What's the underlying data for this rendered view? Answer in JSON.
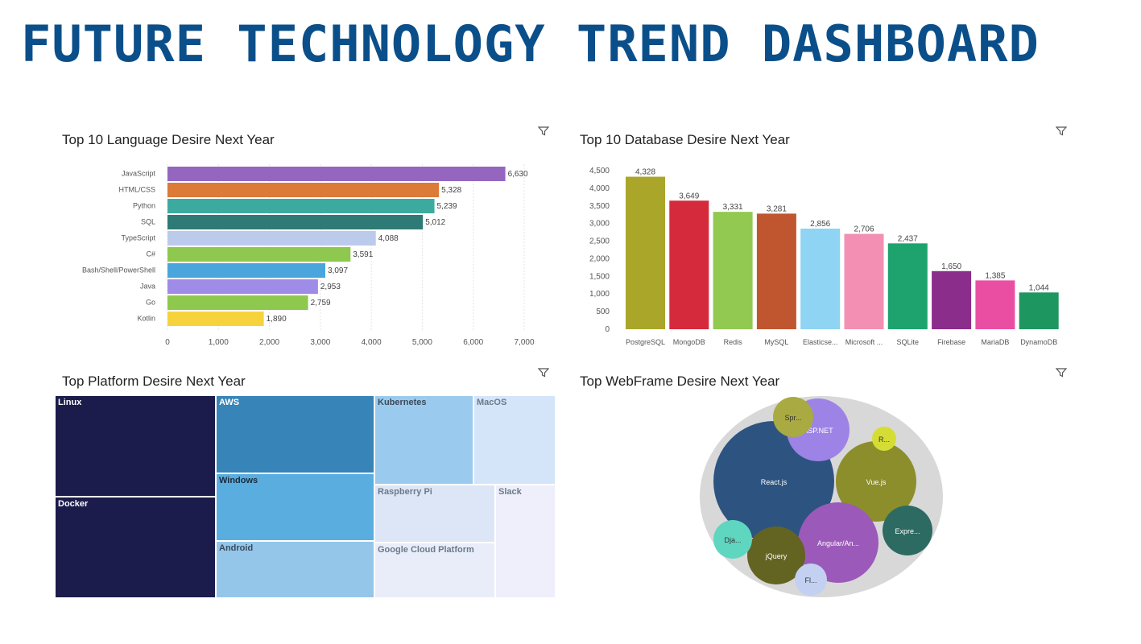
{
  "page": {
    "title": "FUTURE TECHNOLOGY TREND DASHBOARD"
  },
  "panels": {
    "languages": {
      "title": "Top 10 Language Desire Next Year"
    },
    "databases": {
      "title": "Top 10 Database Desire Next Year"
    },
    "platforms": {
      "title": "Top Platform Desire Next Year"
    },
    "webframes": {
      "title": "Top WebFrame Desire Next Year"
    }
  },
  "icons": {
    "filter": "filter-icon"
  },
  "chart_data": [
    {
      "id": "languages",
      "type": "bar",
      "orientation": "horizontal",
      "title": "Top 10 Language Desire Next Year",
      "categories": [
        "JavaScript",
        "HTML/CSS",
        "Python",
        "SQL",
        "TypeScript",
        "C#",
        "Bash/Shell/PowerShell",
        "Java",
        "Go",
        "Kotlin"
      ],
      "values": [
        6630,
        5328,
        5239,
        5012,
        4088,
        3591,
        3097,
        2953,
        2759,
        1890
      ],
      "value_labels": [
        "6,630",
        "5,328",
        "5,239",
        "5,012",
        "4,088",
        "3,591",
        "3,097",
        "2,953",
        "2,759",
        "1,890"
      ],
      "colors": [
        "#9466c0",
        "#dc7a37",
        "#3daaa0",
        "#2e7a76",
        "#bccbeb",
        "#8ec84e",
        "#4aa5dc",
        "#9f8ce8",
        "#8ec84e",
        "#f6d33d"
      ],
      "xlim": [
        0,
        7000
      ],
      "xticks": [
        0,
        1000,
        2000,
        3000,
        4000,
        5000,
        6000,
        7000
      ],
      "xtick_labels": [
        "0",
        "1,000",
        "2,000",
        "3,000",
        "4,000",
        "5,000",
        "6,000",
        "7,000"
      ],
      "grid": true
    },
    {
      "id": "databases",
      "type": "bar",
      "orientation": "vertical",
      "title": "Top 10 Database Desire Next Year",
      "categories": [
        "PostgreSQL",
        "MongoDB",
        "Redis",
        "MySQL",
        "Elasticse...",
        "Microsoft ...",
        "SQLite",
        "Firebase",
        "MariaDB",
        "DynamoDB"
      ],
      "values": [
        4328,
        3649,
        3331,
        3281,
        2856,
        2706,
        2437,
        1650,
        1385,
        1044
      ],
      "value_labels": [
        "4,328",
        "3,649",
        "3,331",
        "3,281",
        "2,856",
        "2,706",
        "2,437",
        "1,650",
        "1,385",
        "1,044"
      ],
      "colors": [
        "#aaa62a",
        "#d42a3c",
        "#92c950",
        "#c0562f",
        "#8fd4f2",
        "#f28fb3",
        "#1ea36f",
        "#8b2d8a",
        "#e94ea3",
        "#1e9660"
      ],
      "ylim": [
        0,
        4500
      ],
      "yticks": [
        0,
        500,
        1000,
        1500,
        2000,
        2500,
        3000,
        3500,
        4000,
        4500
      ],
      "ytick_labels": [
        "0",
        "500",
        "1,000",
        "1,500",
        "2,000",
        "2,500",
        "3,000",
        "3,500",
        "4,000",
        "4,500"
      ],
      "grid": false
    },
    {
      "id": "platforms",
      "type": "treemap",
      "title": "Top Platform Desire Next Year",
      "items": [
        {
          "name": "Linux",
          "size": 1.0,
          "color": "#1b1c4b",
          "text": "#ffffff"
        },
        {
          "name": "Docker",
          "size": 1.0,
          "color": "#1b1c4b",
          "text": "#ffffff"
        },
        {
          "name": "AWS",
          "size": 0.78,
          "color": "#3784b8",
          "text": "#ffffff"
        },
        {
          "name": "Windows",
          "size": 0.69,
          "color": "#5aaedf",
          "text": "#1b2a3a"
        },
        {
          "name": "Android",
          "size": 0.58,
          "color": "#94c6ea",
          "text": "#3a4a5a"
        },
        {
          "name": "Kubernetes",
          "size": 0.48,
          "color": "#9acbee",
          "text": "#3a4a5a"
        },
        {
          "name": "MacOS",
          "size": 0.34,
          "color": "#d4e4f9",
          "text": "#6a7a8a"
        },
        {
          "name": "Raspberry Pi",
          "size": 0.35,
          "color": "#dde6f6",
          "text": "#6a7a8a"
        },
        {
          "name": "Google Cloud Platform",
          "size": 0.35,
          "color": "#e9edf9",
          "text": "#6a7a8a"
        },
        {
          "name": "Slack",
          "size": 0.29,
          "color": "#eeeffa",
          "text": "#6a7a8a"
        }
      ]
    },
    {
      "id": "webframes",
      "type": "bubble",
      "title": "Top WebFrame Desire Next Year",
      "items": [
        {
          "name": "React.js",
          "size": 1.0,
          "color": "#2d5381",
          "text": "#ffffff"
        },
        {
          "name": "Vue.js",
          "size": 0.5,
          "color": "#8b8e2b",
          "text": "#ffffff"
        },
        {
          "name": "Angular/An...",
          "size": 0.5,
          "color": "#9b5ab9",
          "text": "#ffffff"
        },
        {
          "name": "ASP.NET",
          "size": 0.26,
          "color": "#9d83e6",
          "text": "#ffffff"
        },
        {
          "name": "jQuery",
          "size": 0.22,
          "color": "#636322",
          "text": "#ffffff"
        },
        {
          "name": "Expre...",
          "size": 0.17,
          "color": "#2d6a61",
          "text": "#ffffff"
        },
        {
          "name": "Spr...",
          "size": 0.11,
          "color": "#a9aa42",
          "text": "#333333"
        },
        {
          "name": "Dja...",
          "size": 0.1,
          "color": "#5fd6c0",
          "text": "#333333"
        },
        {
          "name": "Fl...",
          "size": 0.07,
          "color": "#c3d0f1",
          "text": "#333333"
        },
        {
          "name": "R...",
          "size": 0.04,
          "color": "#d5dd34",
          "text": "#333333"
        }
      ]
    }
  ]
}
